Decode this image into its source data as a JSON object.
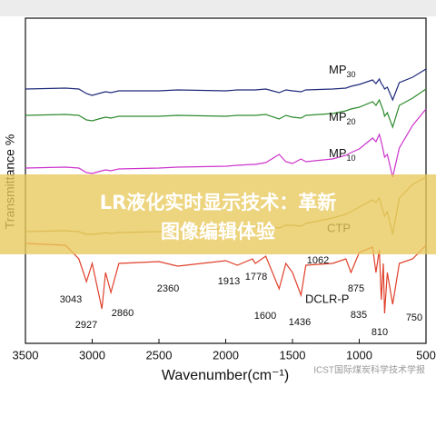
{
  "chart_data": {
    "type": "line",
    "y_label": "Transmittance %",
    "x_label": "Wavenumber(cm⁻¹)",
    "x": [
      3500,
      3200,
      3100,
      3043,
      3000,
      2927,
      2900,
      2860,
      2800,
      2500,
      2360,
      2000,
      1913,
      1800,
      1778,
      1700,
      1600,
      1550,
      1500,
      1436,
      1400,
      1200,
      1100,
      1062,
      1000,
      900,
      875,
      850,
      835,
      820,
      810,
      790,
      750,
      700,
      600,
      500
    ],
    "series": [
      {
        "name": "MP30",
        "color": "#1f2a7a",
        "values": [
          280,
          281,
          280,
          275,
          273,
          276,
          277,
          276,
          278,
          278,
          279,
          278,
          279,
          279,
          279,
          280,
          276,
          279,
          278,
          277,
          279,
          280,
          281,
          283,
          285,
          290,
          286,
          291,
          286,
          283,
          280,
          282,
          268,
          287,
          293,
          302
        ]
      },
      {
        "name": "MP20",
        "color": "#2e8b2e",
        "values": [
          251,
          252,
          251,
          246,
          245,
          248,
          249,
          248,
          250,
          250,
          251,
          250,
          251,
          251,
          251,
          252,
          247,
          251,
          249,
          248,
          251,
          253,
          256,
          258,
          260,
          266,
          262,
          268,
          262,
          256,
          250,
          254,
          238,
          262,
          270,
          280
        ]
      },
      {
        "name": "MP10",
        "color": "#cc33cc",
        "values": [
          193,
          194,
          193,
          188,
          187,
          190,
          191,
          190,
          192,
          193,
          194,
          195,
          196,
          197,
          197,
          199,
          208,
          200,
          198,
          203,
          200,
          203,
          207,
          210,
          214,
          226,
          222,
          230,
          222,
          212,
          205,
          208,
          183,
          215,
          240,
          258
        ]
      },
      {
        "name": "CTP",
        "color": "#b89a40",
        "values": [
          123,
          124,
          123,
          120,
          120,
          121,
          122,
          121,
          122,
          123,
          124,
          126,
          127,
          128,
          128,
          129,
          127,
          130,
          130,
          129,
          132,
          138,
          142,
          145,
          150,
          158,
          155,
          160,
          152,
          145,
          140,
          145,
          120,
          160,
          175,
          183
        ]
      },
      {
        "name": "DCLR-P",
        "color": "#e0402a",
        "values": [
          110,
          108,
          93,
          68,
          88,
          38,
          78,
          56,
          88,
          90,
          85,
          91,
          86,
          93,
          88,
          96,
          60,
          88,
          78,
          53,
          86,
          88,
          93,
          78,
          100,
          106,
          78,
          103,
          48,
          88,
          33,
          78,
          43,
          88,
          93,
          108
        ]
      }
    ],
    "peaks": [
      3043,
      2927,
      2860,
      2360,
      1913,
      1778,
      1600,
      1436,
      1062,
      875,
      835,
      810,
      750
    ],
    "xlim": [
      3500,
      500
    ],
    "xticks": [
      3500,
      3000,
      2500,
      2000,
      1500,
      1000,
      500
    ],
    "ylim": [
      0,
      358
    ]
  },
  "overlay": {
    "line1": "LR液化实时显示技术：革新",
    "line2": "图像编辑体验"
  },
  "watermark": "ICST国际煤炭科学技术学报"
}
